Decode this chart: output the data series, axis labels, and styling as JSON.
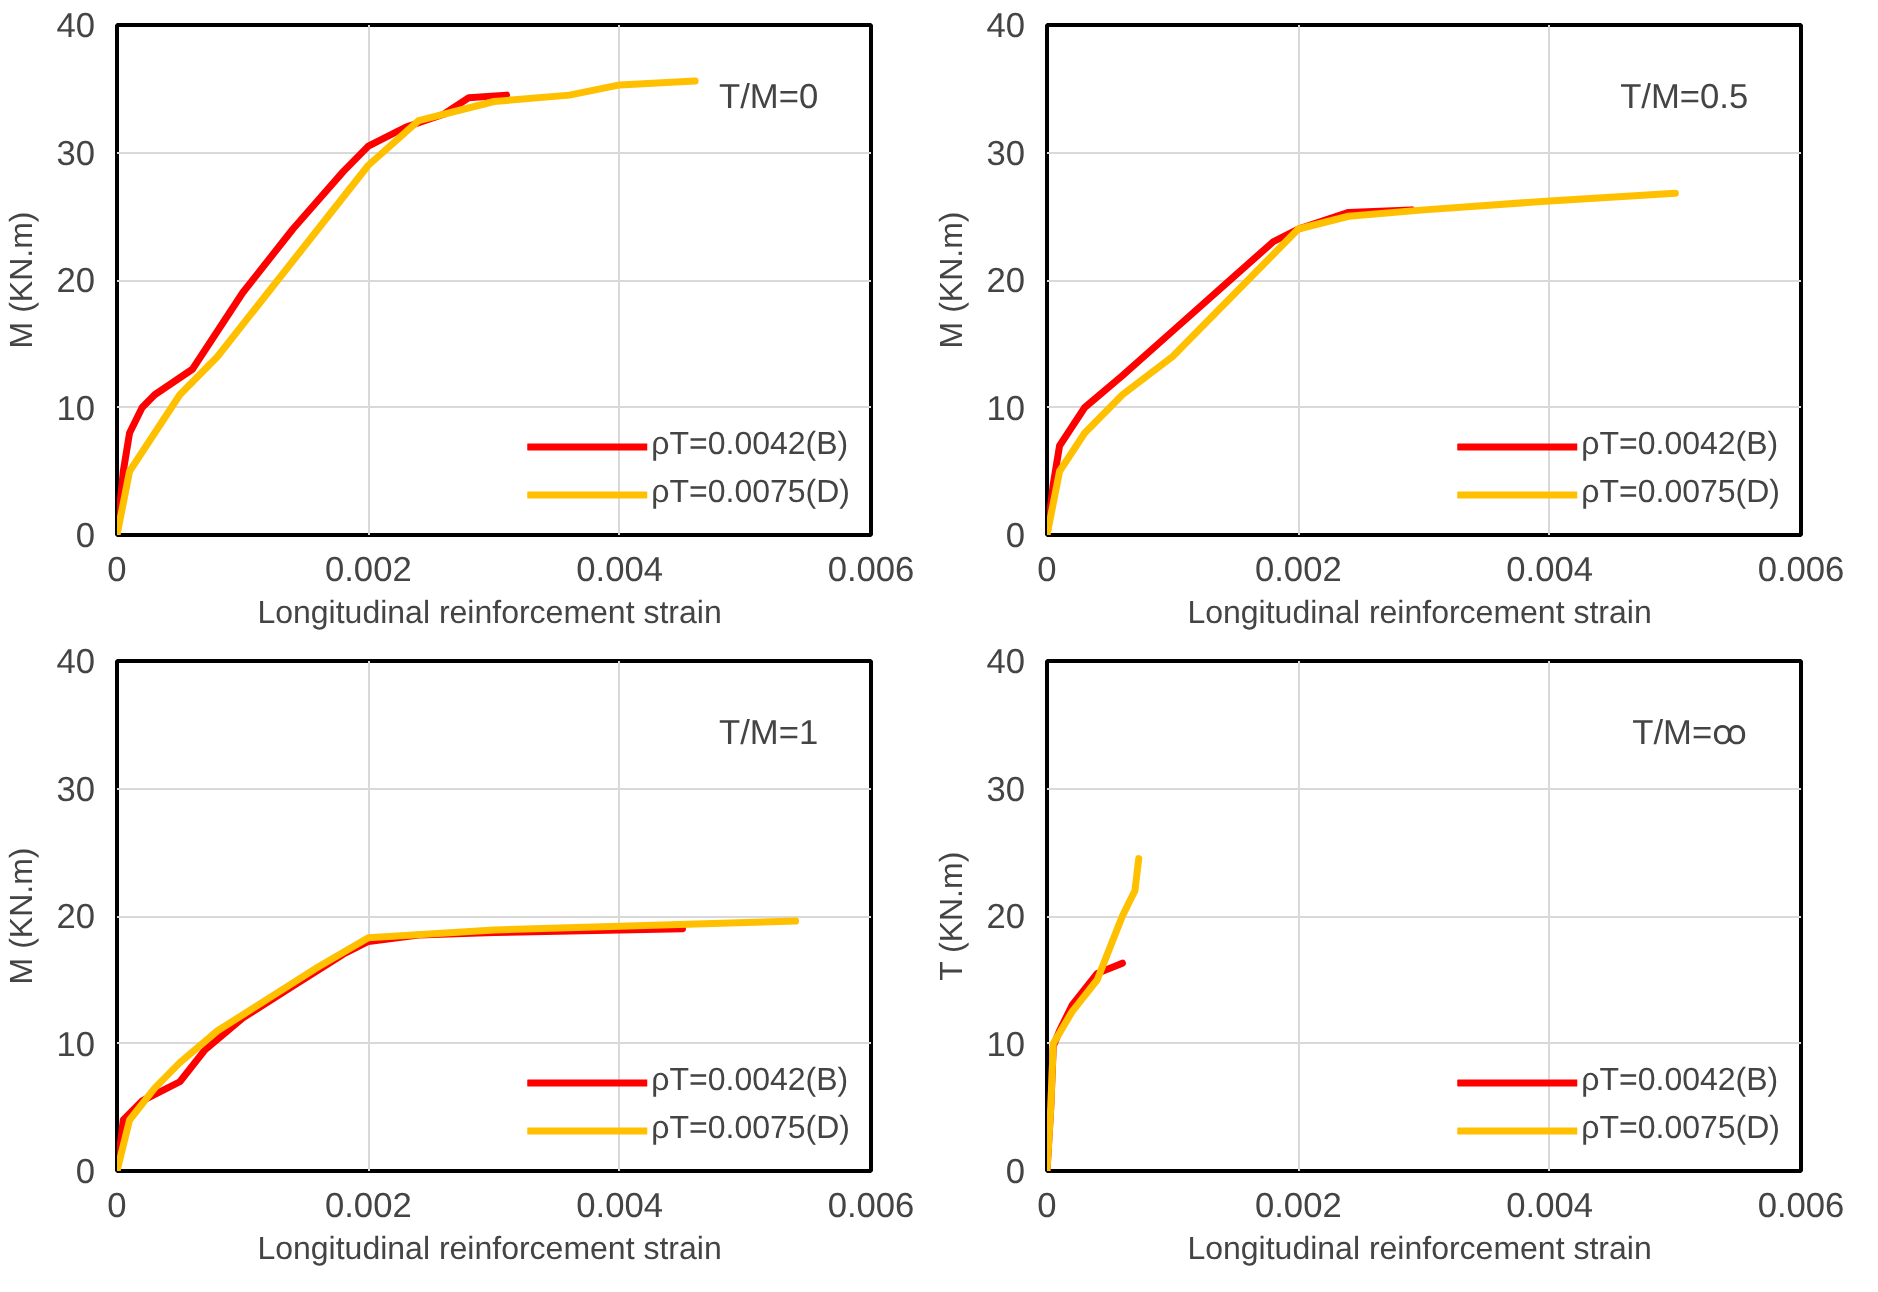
{
  "chart_data": [
    {
      "type": "line",
      "xlabel": "Longitudinal reinforcement  strain",
      "ylabel": "M (KN.m)",
      "annotations": [
        "T/M=0"
      ],
      "xlim": [
        0,
        0.006
      ],
      "xticks": [
        0,
        0.002,
        0.004,
        0.006
      ],
      "ylim": [
        0,
        40
      ],
      "yticks": [
        0,
        10,
        20,
        30,
        40
      ],
      "grid": true,
      "legend": "bottom right",
      "marker": "none",
      "line_style": "solid",
      "series": [
        {
          "name": "ρT=0.0042(B)",
          "color": "#ff0000",
          "x": [
            0,
            5e-05,
            0.0001,
            0.0002,
            0.0003,
            0.0006,
            0.001,
            0.0014,
            0.0018,
            0.002,
            0.0023,
            0.0026,
            0.0028,
            0.0031
          ],
          "values": [
            0,
            5,
            8,
            10,
            11,
            13,
            19,
            24,
            28.5,
            30.5,
            32,
            33,
            34.3,
            34.5
          ]
        },
        {
          "name": "ρT=0.0075(D)",
          "color": "#ffc000",
          "x": [
            0,
            0.0001,
            0.0003,
            0.0005,
            0.0008,
            0.0012,
            0.0016,
            0.002,
            0.0024,
            0.003,
            0.0036,
            0.004,
            0.0046
          ],
          "values": [
            0,
            5,
            8,
            11,
            14,
            19,
            24,
            29,
            32.5,
            34,
            34.5,
            35.3,
            35.6
          ]
        }
      ]
    },
    {
      "type": "line",
      "xlabel": "Longitudinal reinforcement  strain",
      "ylabel": "M (KN.m)",
      "annotations": [
        "T/M=0.5"
      ],
      "xlim": [
        0,
        0.006
      ],
      "xticks": [
        0,
        0.002,
        0.004,
        0.006
      ],
      "ylim": [
        0,
        40
      ],
      "yticks": [
        0,
        10,
        20,
        30,
        40
      ],
      "grid": true,
      "legend": "bottom right",
      "marker": "none",
      "line_style": "solid",
      "series": [
        {
          "name": "ρT=0.0042(B)",
          "color": "#ff0000",
          "x": [
            0,
            5e-05,
            0.0001,
            0.0003,
            0.0006,
            0.001,
            0.0014,
            0.0018,
            0.002,
            0.0024,
            0.0029
          ],
          "values": [
            0,
            4,
            7,
            10,
            12.5,
            16,
            19.5,
            23,
            24,
            25.3,
            25.5
          ]
        },
        {
          "name": "ρT=0.0075(D)",
          "color": "#ffc000",
          "x": [
            0,
            0.0001,
            0.0003,
            0.0006,
            0.001,
            0.0014,
            0.0018,
            0.002,
            0.0024,
            0.003,
            0.004,
            0.005
          ],
          "values": [
            0,
            5,
            8,
            11,
            14,
            18,
            22,
            24,
            25,
            25.5,
            26.2,
            26.8
          ]
        }
      ]
    },
    {
      "type": "line",
      "xlabel": "Longitudinal reinforcement  strain",
      "ylabel": "M (KN.m)",
      "annotations": [
        "T/M=1"
      ],
      "xlim": [
        0,
        0.006
      ],
      "xticks": [
        0,
        0.002,
        0.004,
        0.006
      ],
      "ylim": [
        0,
        40
      ],
      "yticks": [
        0,
        10,
        20,
        30,
        40
      ],
      "grid": true,
      "legend": "bottom right",
      "marker": "none",
      "line_style": "solid",
      "series": [
        {
          "name": "ρT=0.0042(B)",
          "color": "#ff0000",
          "x": [
            0,
            5e-05,
            0.0002,
            0.0005,
            0.0007,
            0.001,
            0.0014,
            0.0018,
            0.002,
            0.0024,
            0.003,
            0.0045
          ],
          "values": [
            0,
            4,
            5.5,
            7,
            9.5,
            12,
            14.5,
            17,
            18,
            18.5,
            18.7,
            19
          ]
        },
        {
          "name": "ρT=0.0075(D)",
          "color": "#ffc000",
          "x": [
            0,
            0.0001,
            0.0003,
            0.0005,
            0.0008,
            0.0012,
            0.0016,
            0.002,
            0.003,
            0.004,
            0.0054
          ],
          "values": [
            0,
            4,
            6.5,
            8.5,
            11,
            13.5,
            16,
            18.3,
            18.9,
            19.2,
            19.6
          ]
        }
      ]
    },
    {
      "type": "line",
      "xlabel": "Longitudinal reinforcement  strain",
      "ylabel": "T (KN.m)",
      "annotations": [
        "T/M=ꝏ"
      ],
      "xlim": [
        0,
        0.006
      ],
      "xticks": [
        0,
        0.002,
        0.004,
        0.006
      ],
      "ylim": [
        0,
        40
      ],
      "yticks": [
        0,
        10,
        20,
        30,
        40
      ],
      "grid": true,
      "legend": "bottom right",
      "marker": "none",
      "line_style": "solid",
      "series": [
        {
          "name": "ρT=0.0042(B)",
          "color": "#ff0000",
          "x": [
            0,
            3e-05,
            5e-05,
            0.0001,
            0.0002,
            0.0004,
            0.0006
          ],
          "values": [
            0,
            5,
            9.8,
            11,
            13,
            15.5,
            16.3
          ]
        },
        {
          "name": "ρT=0.0075(D)",
          "color": "#ffc000",
          "x": [
            0,
            3e-05,
            5e-05,
            0.0002,
            0.0004,
            0.0005,
            0.0006,
            0.0007,
            0.00073
          ],
          "values": [
            0,
            5,
            10,
            12.5,
            15,
            17.5,
            20,
            22,
            24.5
          ]
        }
      ]
    }
  ]
}
